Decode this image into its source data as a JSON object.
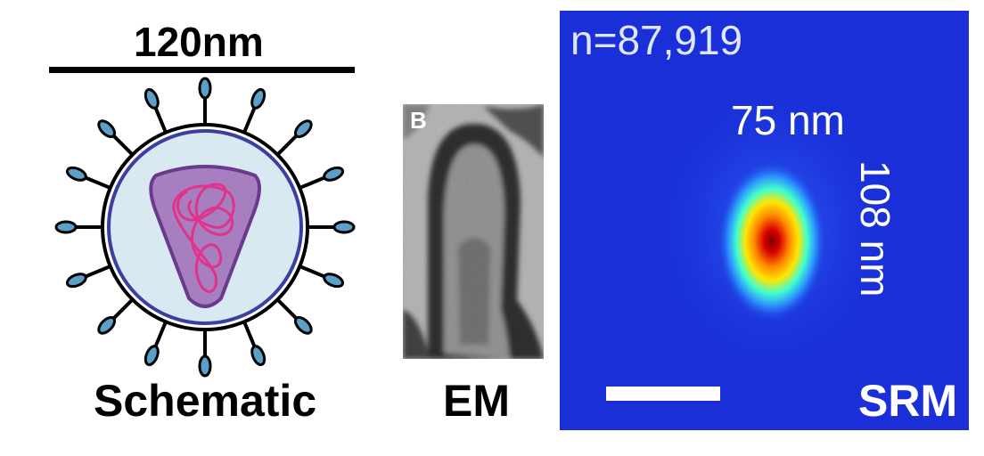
{
  "schematic": {
    "scale_label": "120nm",
    "panel_label": "Schematic"
  },
  "em": {
    "panel_letter": "B",
    "panel_label": "EM"
  },
  "srm": {
    "count_label": "n=87,919",
    "width_label": "75 nm",
    "height_label": "108 nm",
    "panel_label": "SRM"
  },
  "colors": {
    "envelope_fill": "#d9e9f2",
    "envelope_stroke": "#3b3fa0",
    "capsid_fill": "#a77fc0",
    "capsid_stroke": "#6b3a8f",
    "genome": "#e0338a",
    "spike_head": "#5aa0c8",
    "srm_background": "#1a2fd8"
  }
}
